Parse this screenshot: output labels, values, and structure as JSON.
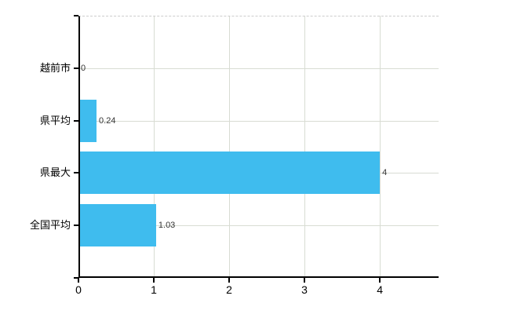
{
  "chart_data": {
    "type": "bar",
    "orientation": "horizontal",
    "categories": [
      "越前市",
      "県平均",
      "県最大",
      "全国平均"
    ],
    "values": [
      0,
      0.24,
      4,
      1.03
    ],
    "value_labels": [
      "0",
      "0.24",
      "4",
      "1.03"
    ],
    "x_tick_labels": [
      "0",
      "1",
      "2",
      "3",
      "4"
    ],
    "x_tick_values": [
      0,
      1,
      2,
      3,
      4
    ],
    "xlim": [
      0,
      4.78
    ],
    "grid": true,
    "legend": false,
    "colors": {
      "bar": "#3fbcee",
      "grid": "#d8dcd3",
      "axis": "#000000",
      "plot_top_border": "#cccccc",
      "value_label": "#333333",
      "category_label": "#000000",
      "tick_label": "#000000",
      "background": "#ffffff"
    }
  }
}
